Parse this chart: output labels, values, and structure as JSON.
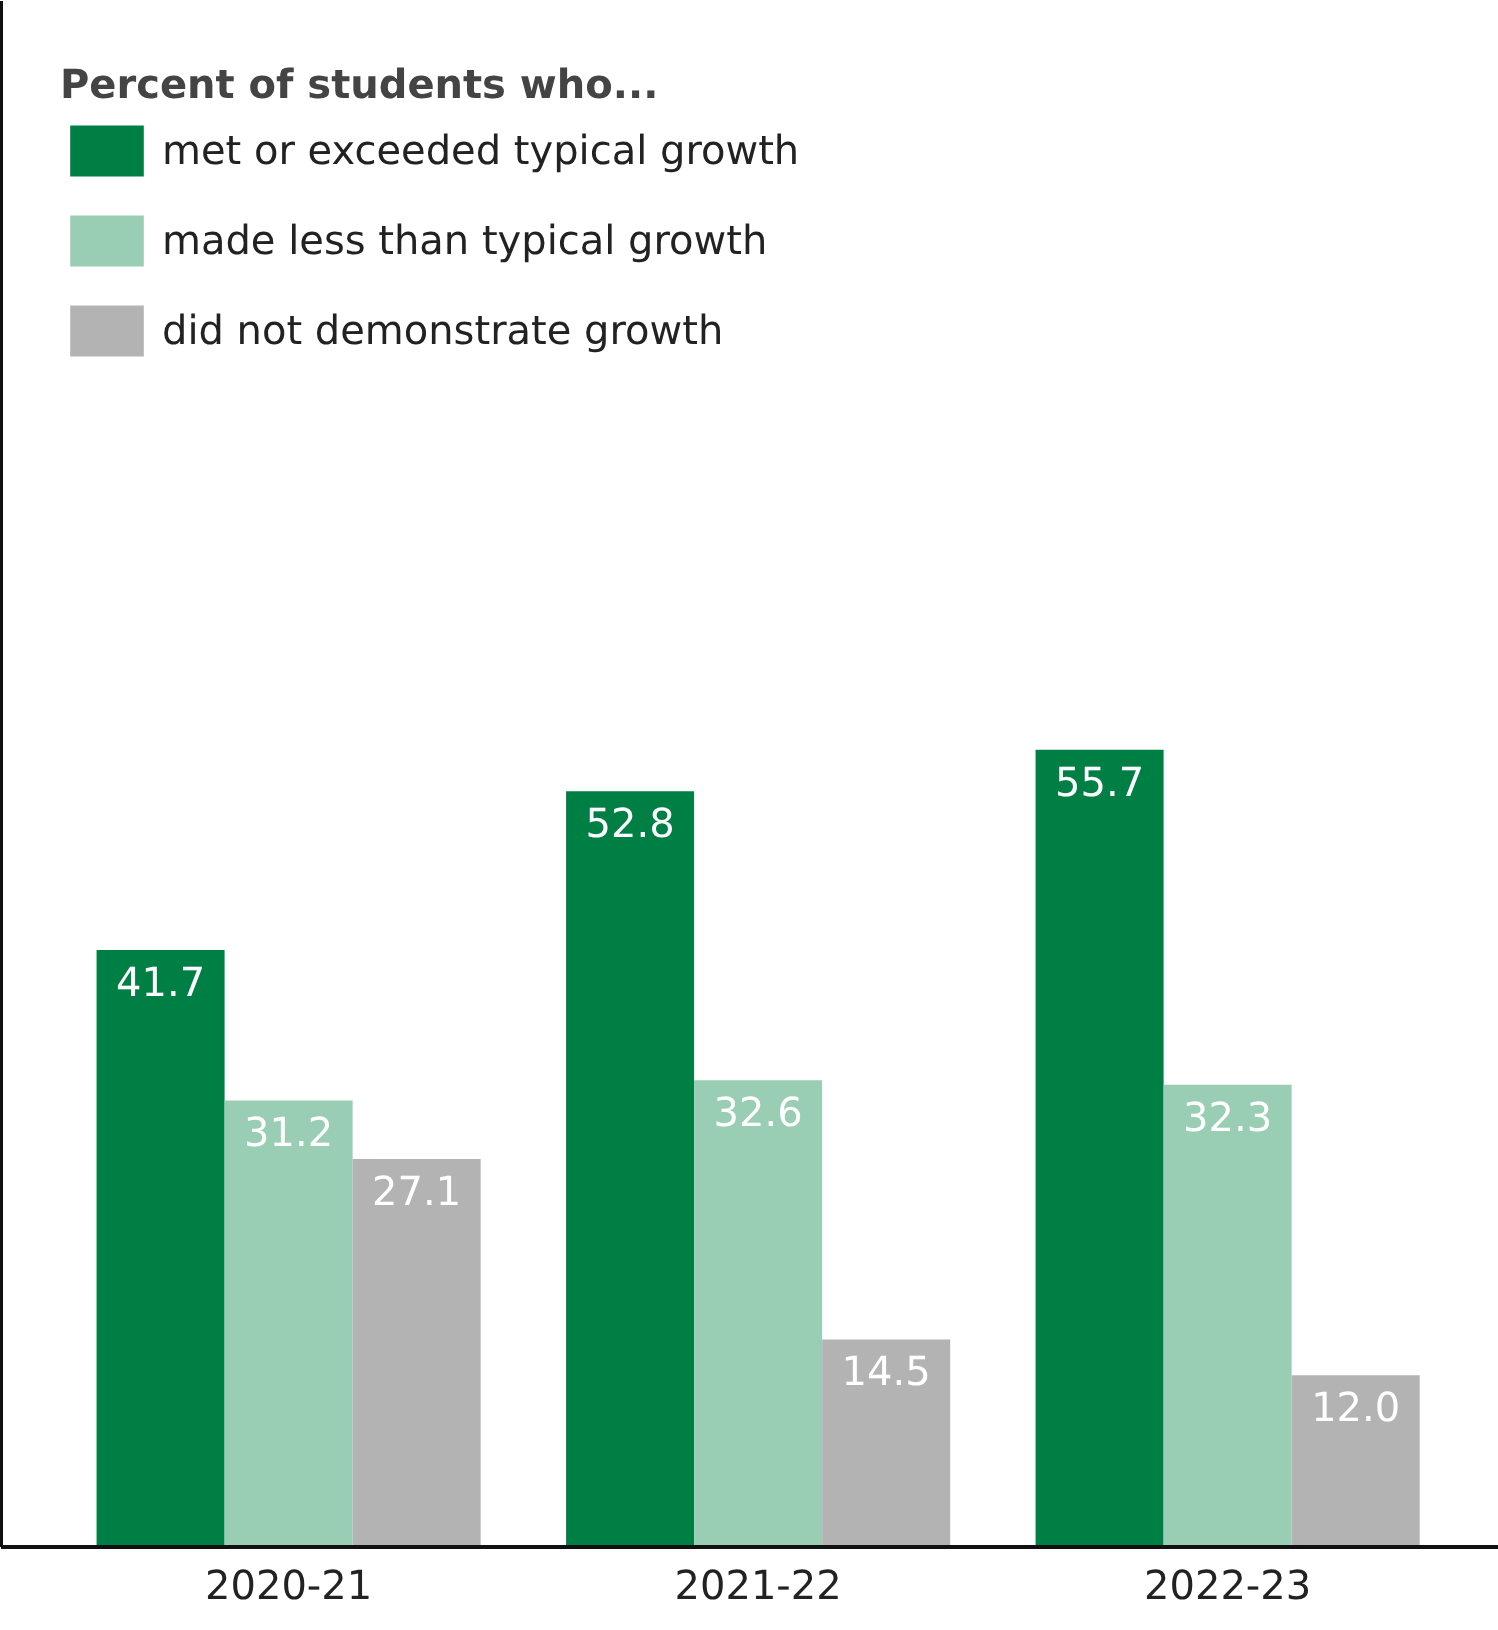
{
  "chart_data": {
    "type": "bar",
    "legend_title": "Percent of students who...",
    "categories": [
      "2020-21",
      "2021-22",
      "2022-23"
    ],
    "series": [
      {
        "name": "met or exceeded typical growth",
        "color": "#007f45",
        "values": [
          41.7,
          52.8,
          55.7
        ],
        "value_labels": [
          "41.7",
          "52.8",
          "55.7"
        ]
      },
      {
        "name": "made less than typical growth",
        "color": "#99cdb4",
        "values": [
          31.2,
          32.6,
          32.3
        ],
        "value_labels": [
          "31.2",
          "32.6",
          "32.3"
        ]
      },
      {
        "name": "did not demonstrate growth",
        "color": "#b3b3b3",
        "values": [
          27.1,
          14.5,
          12.0
        ],
        "value_labels": [
          "27.1",
          "14.5",
          "12.0"
        ]
      }
    ],
    "ylim": [
      0,
      108
    ],
    "legend": "top left",
    "grid": false,
    "tick_labels": "x"
  }
}
